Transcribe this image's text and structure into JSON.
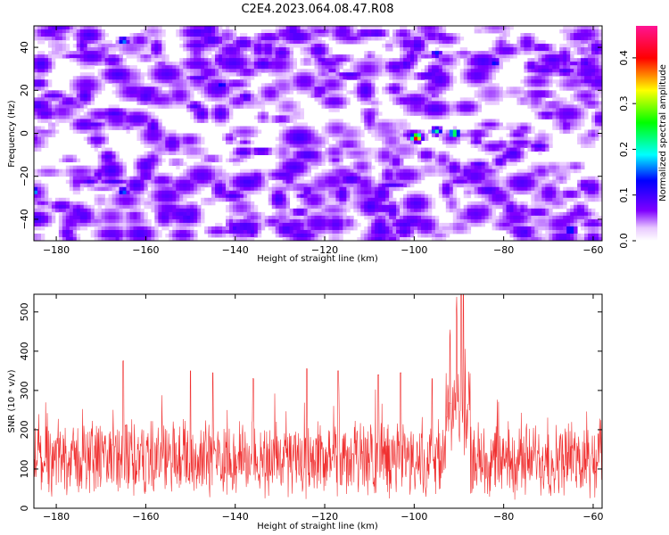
{
  "title": "C2E4.2023.064.08.47.R08",
  "chart_data": [
    {
      "type": "heatmap",
      "xlabel": "Height of straight line (km)",
      "ylabel": "Frequency (Hz)",
      "xlim": [
        -185,
        -58
      ],
      "ylim": [
        -50,
        50
      ],
      "x_ticks": [
        -180,
        -160,
        -140,
        -120,
        -100,
        -80,
        -60
      ],
      "y_ticks": [
        -40,
        -20,
        0,
        20,
        40
      ],
      "colorbar": {
        "label": "Normalized spectral amplitude",
        "range": [
          0,
          0.47
        ],
        "ticks": [
          0.0,
          0.1,
          0.2,
          0.3,
          0.4
        ],
        "colormap": [
          "#ffffff",
          "#7f00ff",
          "#0000ff",
          "#00ffff",
          "#00ff00",
          "#ffff00",
          "#ff0000",
          "#ff1493"
        ]
      },
      "background_level": 0.07,
      "hotspots": [
        {
          "x": -99.5,
          "y": -2,
          "value": 0.45
        },
        {
          "x": -91,
          "y": 0,
          "value": 0.3
        },
        {
          "x": -95,
          "y": 1,
          "value": 0.22
        },
        {
          "x": -165,
          "y": 43,
          "value": 0.18
        },
        {
          "x": -165,
          "y": -27,
          "value": 0.17
        },
        {
          "x": -185,
          "y": -27,
          "value": 0.2
        },
        {
          "x": -143,
          "y": 22,
          "value": 0.15
        },
        {
          "x": -95,
          "y": 37,
          "value": 0.15
        },
        {
          "x": -82,
          "y": 33,
          "value": 0.15
        },
        {
          "x": -65,
          "y": -45,
          "value": 0.18
        }
      ]
    },
    {
      "type": "line",
      "xlabel": "Height of straight line (km)",
      "ylabel": "SNR (10 * v/v)",
      "xlim": [
        -185,
        -58
      ],
      "ylim": [
        0,
        545
      ],
      "x_ticks": [
        -180,
        -160,
        -140,
        -120,
        -100,
        -80,
        -60
      ],
      "y_ticks": [
        0,
        100,
        200,
        300,
        400,
        500
      ],
      "series": [
        {
          "color": "#f03030",
          "baseline_mean": 125,
          "baseline_spread": 150,
          "peaks": [
            {
              "x": -89.5,
              "y": 540
            },
            {
              "x": -89,
              "y": 445
            },
            {
              "x": -90.5,
              "y": 400
            },
            {
              "x": -92,
              "y": 370
            },
            {
              "x": -165,
              "y": 375
            },
            {
              "x": -124,
              "y": 355
            },
            {
              "x": -117,
              "y": 350
            },
            {
              "x": -108,
              "y": 340
            },
            {
              "x": -103,
              "y": 345
            },
            {
              "x": -96,
              "y": 330
            },
            {
              "x": -150,
              "y": 350
            },
            {
              "x": -145,
              "y": 345
            },
            {
              "x": -136,
              "y": 330
            }
          ]
        }
      ]
    }
  ]
}
